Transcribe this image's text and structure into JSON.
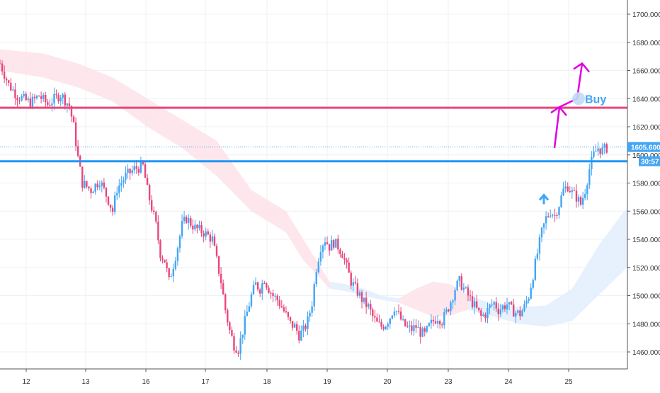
{
  "colors": {
    "up": "#42a5f5",
    "down": "#e9467a",
    "resistance_line": "#e9467a",
    "support_line": "#2196f3",
    "arrow": "#e100e1",
    "buy_arrow": "#42a5f5",
    "cloud_bearish": "#fde3ea",
    "cloud_bullish": "#e3f0fd",
    "grid": "#eef1f5",
    "axis_text": "#333333"
  },
  "chart_data": {
    "type": "candlestick",
    "x_tick_labels": [
      "12",
      "13",
      "16",
      "17",
      "18",
      "19",
      "20",
      "23",
      "24",
      "25"
    ],
    "y_tick_labels": [
      "1460.000",
      "1480.000",
      "1500.000",
      "1520.000",
      "1540.000",
      "1560.000",
      "1580.000",
      "1600.000",
      "1620.000",
      "1640.000",
      "1660.000",
      "1680.000",
      "1700.000"
    ],
    "ylim": [
      1446,
      1710
    ],
    "current_price_label": "1605.600",
    "current_price": 1605.6,
    "countdown_label": "30:57",
    "hidden_price_label_fragment": "16",
    "resistance_level": 1633.5,
    "support_level": 1595.5,
    "buy_label": "Buy",
    "grid": true,
    "price_path": [
      [
        0,
        1665
      ],
      [
        2,
        1650
      ],
      [
        4,
        1642
      ],
      [
        7,
        1637
      ],
      [
        9,
        1642
      ],
      [
        11,
        1636
      ],
      [
        14,
        1643
      ],
      [
        16,
        1635
      ],
      [
        17,
        1620
      ],
      [
        18,
        1598
      ],
      [
        19,
        1580
      ],
      [
        21,
        1575
      ],
      [
        23,
        1582
      ],
      [
        25,
        1568
      ],
      [
        26,
        1560
      ],
      [
        27,
        1576
      ],
      [
        29,
        1585
      ],
      [
        31,
        1590
      ],
      [
        33,
        1592
      ],
      [
        34,
        1575
      ],
      [
        36,
        1550
      ],
      [
        37,
        1530
      ],
      [
        38,
        1525
      ],
      [
        39,
        1510
      ],
      [
        40,
        1522
      ],
      [
        41,
        1535
      ],
      [
        42,
        1550
      ],
      [
        43,
        1555
      ],
      [
        45,
        1548
      ],
      [
        47,
        1545
      ],
      [
        49,
        1540
      ],
      [
        50,
        1525
      ],
      [
        51,
        1510
      ],
      [
        52,
        1490
      ],
      [
        53,
        1475
      ],
      [
        54,
        1465
      ],
      [
        55,
        1462
      ],
      [
        56,
        1475
      ],
      [
        57,
        1488
      ],
      [
        58,
        1500
      ],
      [
        59,
        1508
      ],
      [
        60,
        1505
      ],
      [
        61,
        1512
      ],
      [
        62,
        1505
      ],
      [
        63,
        1500
      ],
      [
        64,
        1497
      ],
      [
        65,
        1492
      ],
      [
        66,
        1486
      ],
      [
        67,
        1480
      ],
      [
        68,
        1478
      ],
      [
        69,
        1472
      ],
      [
        70,
        1475
      ],
      [
        71,
        1482
      ],
      [
        72,
        1495
      ],
      [
        73,
        1520
      ],
      [
        74,
        1535
      ],
      [
        75,
        1540
      ],
      [
        76,
        1535
      ],
      [
        77,
        1538
      ],
      [
        78,
        1535
      ],
      [
        79,
        1530
      ],
      [
        80,
        1520
      ],
      [
        81,
        1510
      ],
      [
        82,
        1505
      ],
      [
        83,
        1500
      ],
      [
        84,
        1495
      ],
      [
        85,
        1492
      ],
      [
        86,
        1485
      ],
      [
        87,
        1480
      ],
      [
        88,
        1478
      ],
      [
        89,
        1480
      ],
      [
        90,
        1485
      ],
      [
        91,
        1492
      ],
      [
        92,
        1486
      ],
      [
        93,
        1480
      ],
      [
        94,
        1477
      ],
      [
        95,
        1476
      ],
      [
        96,
        1478
      ],
      [
        97,
        1474
      ],
      [
        98,
        1472
      ],
      [
        99,
        1478
      ],
      [
        100,
        1482
      ],
      [
        101,
        1485
      ],
      [
        102,
        1482
      ],
      [
        103,
        1488
      ],
      [
        104,
        1496
      ],
      [
        105,
        1505
      ],
      [
        106,
        1510
      ],
      [
        107,
        1505
      ],
      [
        108,
        1500
      ],
      [
        109,
        1495
      ],
      [
        110,
        1490
      ],
      [
        111,
        1485
      ],
      [
        112,
        1487
      ],
      [
        113,
        1492
      ],
      [
        114,
        1495
      ],
      [
        115,
        1490
      ],
      [
        116,
        1492
      ],
      [
        117,
        1494
      ],
      [
        118,
        1490
      ],
      [
        119,
        1488
      ],
      [
        120,
        1487
      ],
      [
        121,
        1492
      ],
      [
        122,
        1500
      ],
      [
        123,
        1515
      ],
      [
        124,
        1530
      ],
      [
        125,
        1545
      ],
      [
        126,
        1555
      ],
      [
        127,
        1560
      ],
      [
        128,
        1557
      ],
      [
        129,
        1565
      ],
      [
        130,
        1575
      ],
      [
        131,
        1578
      ],
      [
        132,
        1573
      ],
      [
        133,
        1570
      ],
      [
        134,
        1565
      ],
      [
        135,
        1575
      ],
      [
        136,
        1590
      ],
      [
        137,
        1600
      ],
      [
        138,
        1605
      ],
      [
        139,
        1603
      ],
      [
        140,
        1605
      ]
    ],
    "cloud": [
      {
        "name": "bearish",
        "x": [
          0,
          10,
          18,
          26,
          34,
          42,
          50,
          58,
          66,
          70,
          74,
          76
        ],
        "upper": [
          1675,
          1672,
          1665,
          1655,
          1640,
          1625,
          1610,
          1575,
          1560,
          1540,
          1520,
          1510
        ],
        "lower": [
          1660,
          1655,
          1648,
          1638,
          1620,
          1605,
          1585,
          1560,
          1545,
          1525,
          1512,
          1505
        ]
      },
      {
        "name": "bullish",
        "x": [
          76,
          80,
          84,
          88,
          92
        ],
        "upper": [
          1510,
          1508,
          1505,
          1500,
          1498
        ],
        "lower": [
          1505,
          1503,
          1500,
          1497,
          1495
        ]
      },
      {
        "name": "bearish",
        "x": [
          92,
          96,
          100,
          104,
          108
        ],
        "upper": [
          1498,
          1505,
          1510,
          1508,
          1500
        ],
        "lower": [
          1495,
          1490,
          1485,
          1486,
          1490
        ]
      },
      {
        "name": "bullish",
        "x": [
          108,
          114,
          120,
          126,
          132,
          138,
          144,
          150
        ],
        "upper": [
          1500,
          1494,
          1492,
          1493,
          1505,
          1535,
          1560,
          1575
        ],
        "lower": [
          1490,
          1485,
          1480,
          1478,
          1482,
          1500,
          1518,
          1540
        ]
      }
    ]
  }
}
